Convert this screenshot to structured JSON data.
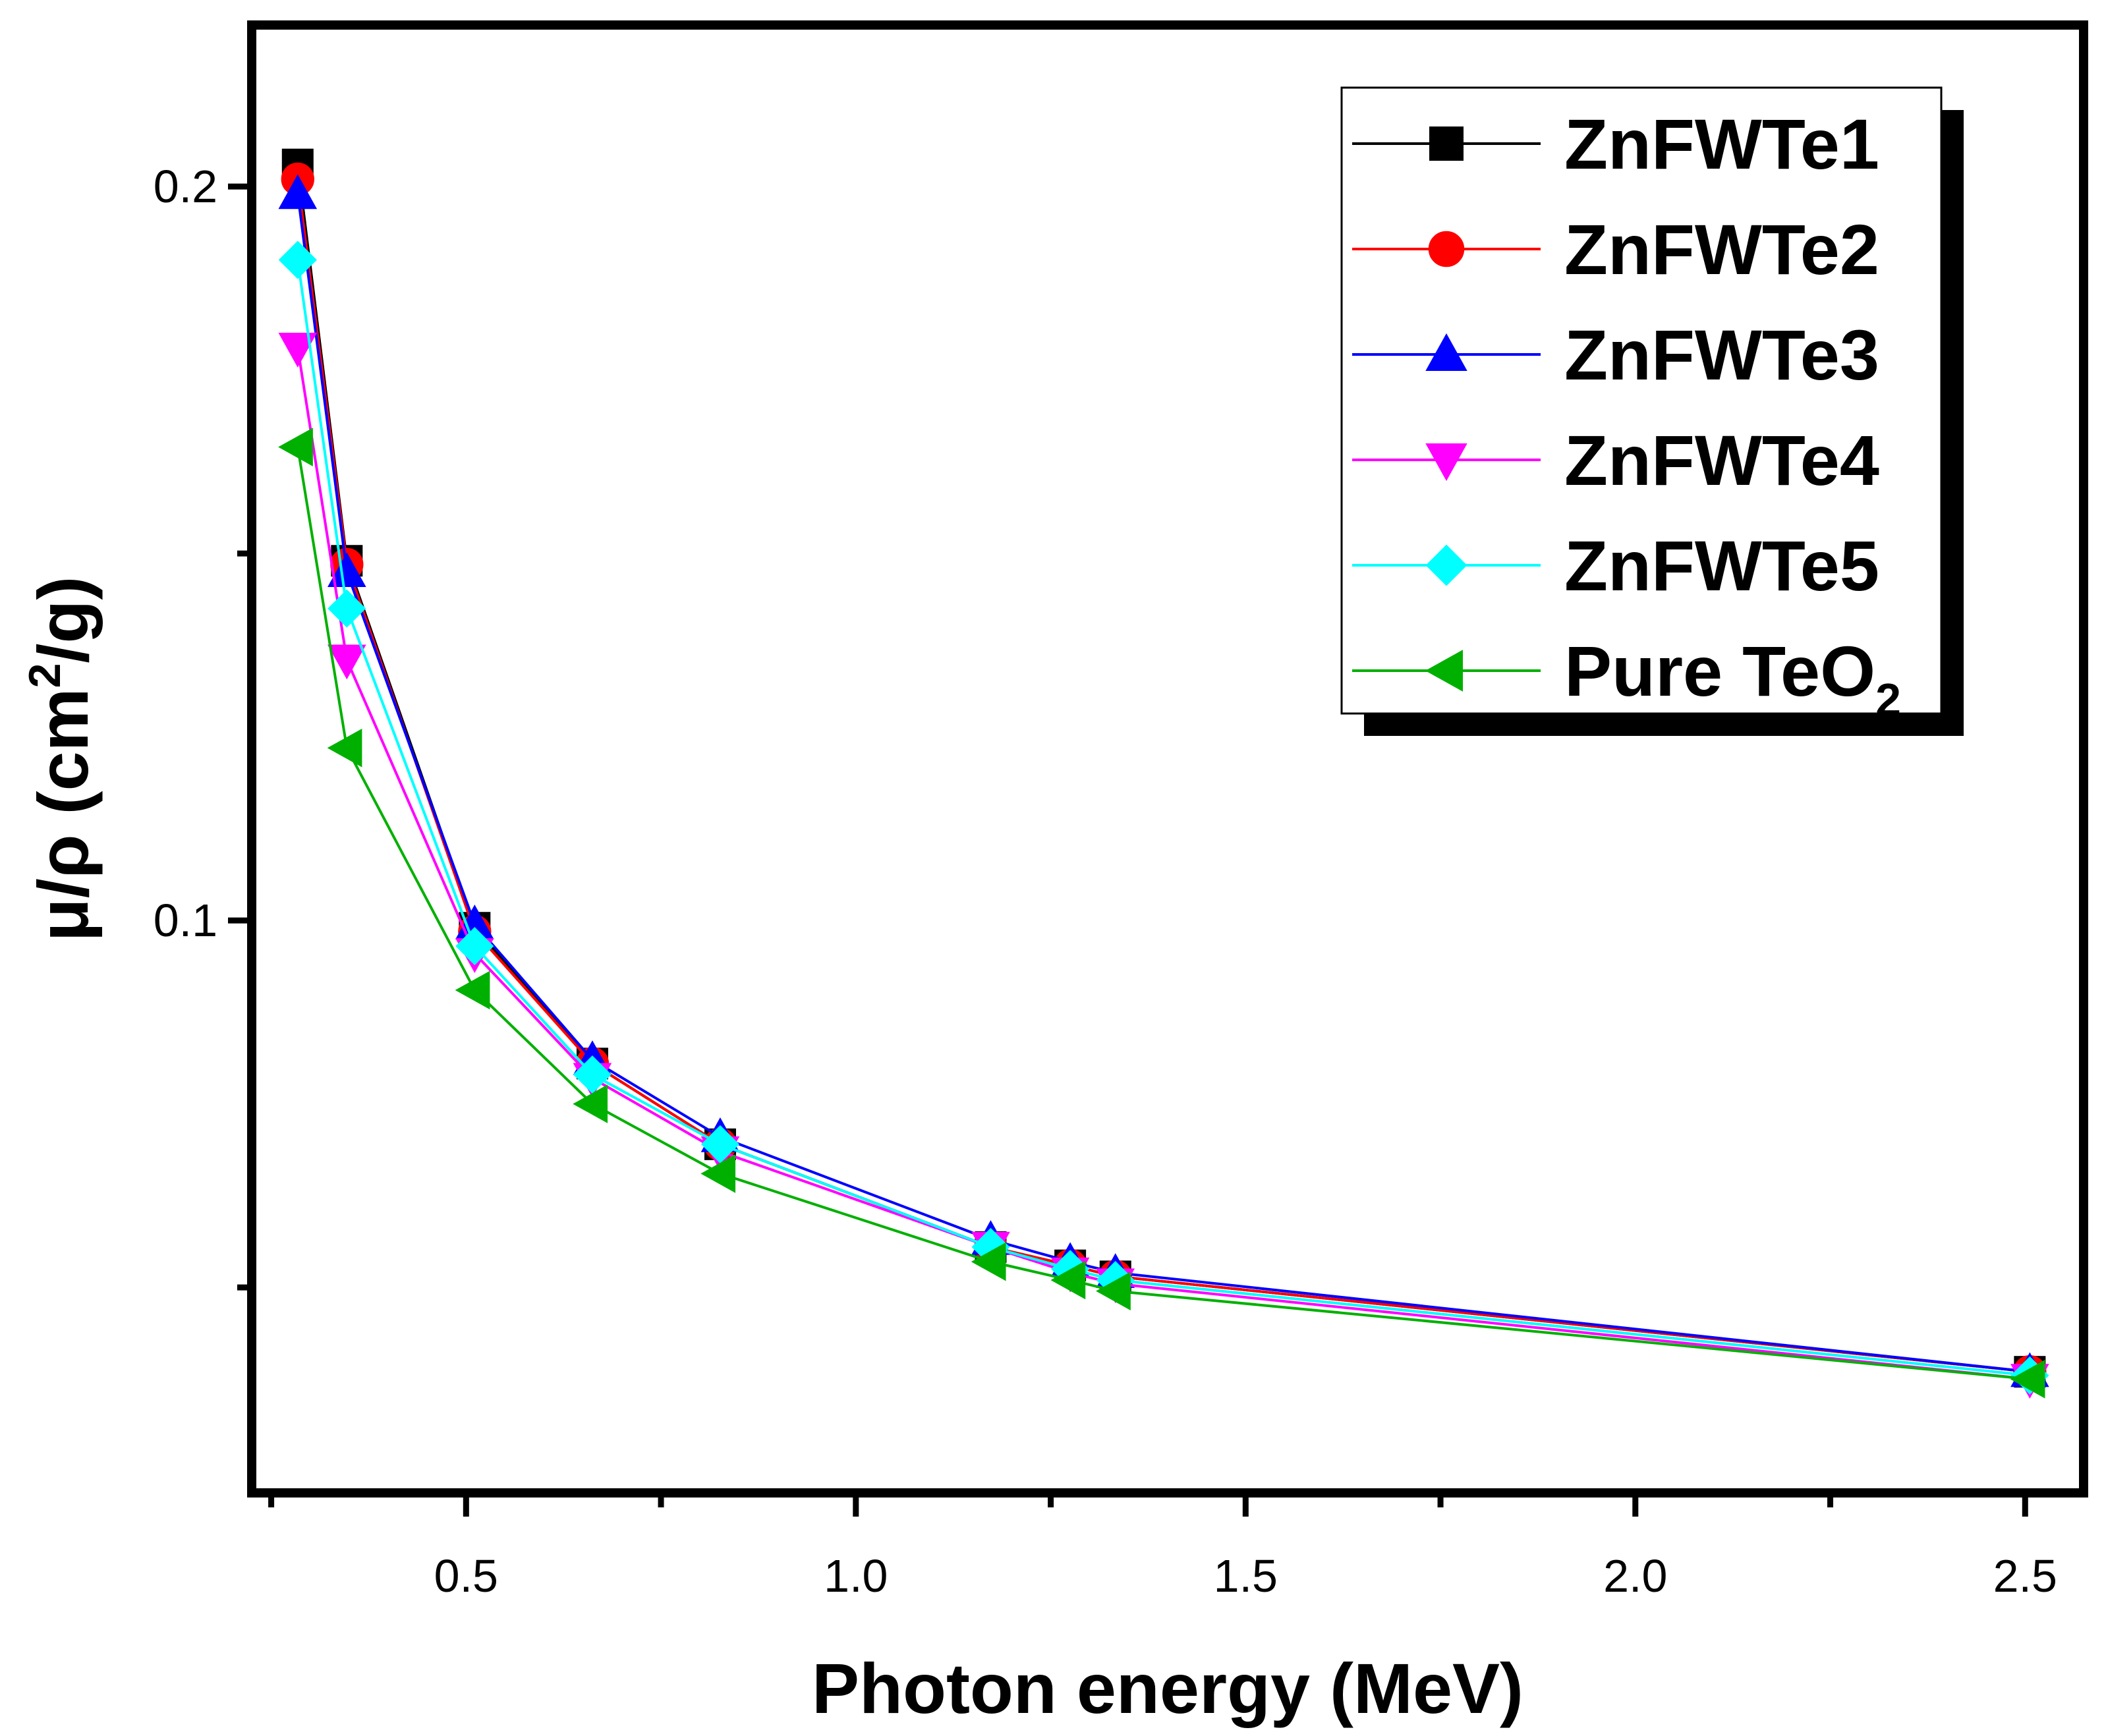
{
  "chart_data": {
    "type": "line",
    "xlabel": "Photon energy (MeV)",
    "ylabel_main": "μ/ρ (cm",
    "ylabel_sup": "2",
    "ylabel_tail": "/g)",
    "xlim": [
      0.225,
      2.575
    ],
    "ylim": [
      0.022,
      0.222
    ],
    "x_ticks": [
      {
        "value": 0.5,
        "label": "0.5"
      },
      {
        "value": 1.0,
        "label": "1.0"
      },
      {
        "value": 1.5,
        "label": "1.5"
      },
      {
        "value": 2.0,
        "label": "2.0"
      },
      {
        "value": 2.5,
        "label": "2.5"
      }
    ],
    "x_minor_ticks": [
      0.25,
      0.75,
      1.25,
      1.75,
      2.25
    ],
    "y_ticks": [
      {
        "value": 0.1,
        "label": "0.1"
      },
      {
        "value": 0.2,
        "label": "0.2"
      }
    ],
    "y_minor_ticks": [
      0.05,
      0.15
    ],
    "x": [
      0.284,
      0.347,
      0.511,
      0.662,
      0.826,
      1.173,
      1.275,
      1.333,
      2.506
    ],
    "series": [
      {
        "name": "ZnFWTe1",
        "color": "#000000",
        "marker": "square",
        "values": [
          0.203,
          0.149,
          0.099,
          0.0805,
          0.0695,
          0.0555,
          0.053,
          0.0515,
          0.0385
        ]
      },
      {
        "name": "ZnFWTe2",
        "color": "#ff0000",
        "marker": "circle",
        "values": [
          0.201,
          0.1485,
          0.0985,
          0.0805,
          0.0695,
          0.0555,
          0.053,
          0.0515,
          0.0385
        ]
      },
      {
        "name": "ZnFWTe3",
        "color": "#0000ff",
        "marker": "triangle-up",
        "values": [
          0.199,
          0.1475,
          0.0995,
          0.081,
          0.0705,
          0.0565,
          0.0535,
          0.052,
          0.0385
        ]
      },
      {
        "name": "ZnFWTe4",
        "color": "#ff00ff",
        "marker": "triangle-down",
        "values": [
          0.178,
          0.1355,
          0.0955,
          0.0785,
          0.0685,
          0.0555,
          0.052,
          0.0505,
          0.0375
        ]
      },
      {
        "name": "ZnFWTe5",
        "color": "#00ffff",
        "marker": "diamond",
        "values": [
          0.19,
          0.1425,
          0.0965,
          0.079,
          0.0695,
          0.0555,
          0.0525,
          0.051,
          0.038
        ]
      },
      {
        "name": "Pure TeO",
        "name_sub": "2",
        "color": "#00b000",
        "marker": "triangle-left",
        "values": [
          0.1645,
          0.1235,
          0.0905,
          0.075,
          0.0655,
          0.0535,
          0.051,
          0.0495,
          0.0375
        ]
      }
    ],
    "legend_position": "top-right",
    "grid": false
  }
}
